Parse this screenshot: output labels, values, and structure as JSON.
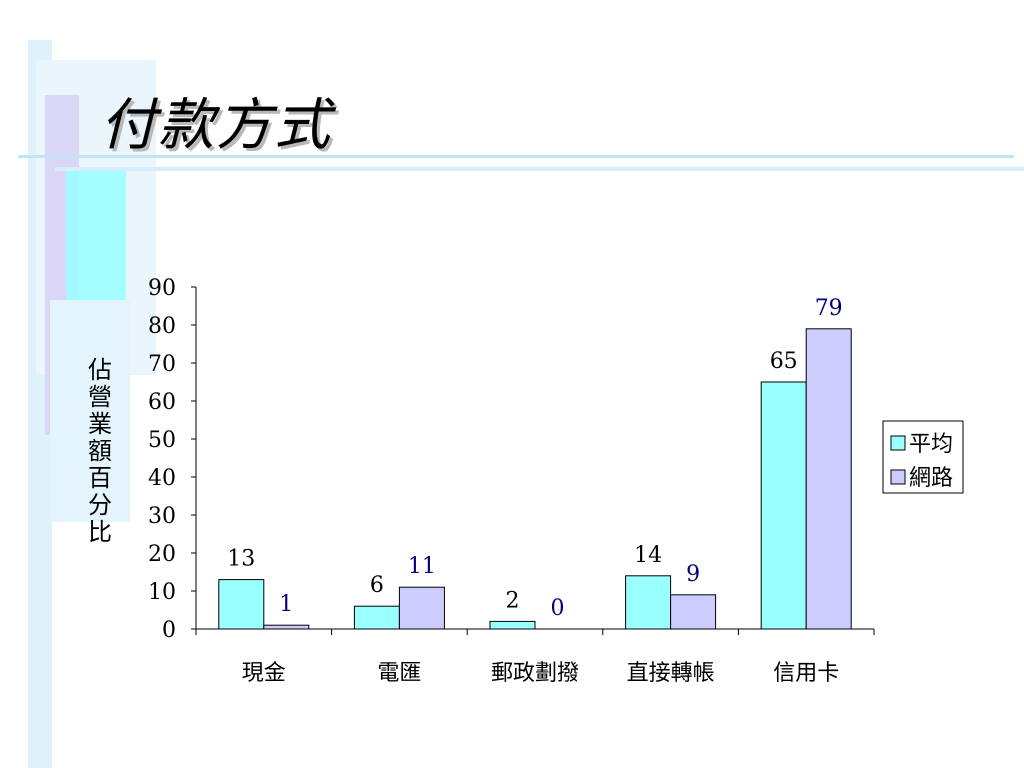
{
  "slide": {
    "title": "付款方式"
  },
  "chart_data": {
    "type": "bar",
    "title": "",
    "xlabel": "",
    "ylabel": "佔營業額百分比",
    "ylim": [
      0,
      90
    ],
    "yticks": [
      0,
      10,
      20,
      30,
      40,
      50,
      60,
      70,
      80,
      90
    ],
    "categories": [
      "現金",
      "電匯",
      "郵政劃撥",
      "直接轉帳",
      "信用卡"
    ],
    "series": [
      {
        "name": "平均",
        "values": [
          13,
          6,
          2,
          14,
          65
        ],
        "color": "#99ffff",
        "label_color": "#000000"
      },
      {
        "name": "網路",
        "values": [
          1,
          11,
          0,
          9,
          79
        ],
        "color": "#ccccff",
        "label_color": "#000080"
      }
    ],
    "grid": false,
    "legend": "right"
  }
}
